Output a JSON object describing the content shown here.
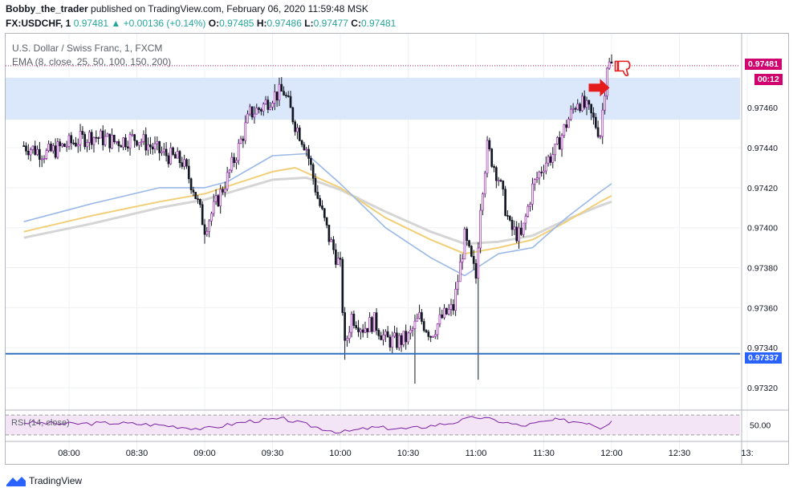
{
  "header": {
    "author": "Bobby_the_trader",
    "published": "published on TradingView.com, February 06, 2020 11:59:48 MSK",
    "symbol": "FX:USDCHF, 1",
    "price": "0.97481",
    "change_arrow": "▲",
    "change": "+0.00136 (+0.14%)",
    "o_label": "O:",
    "o": "0.97485",
    "h_label": "H:",
    "h": "0.97486",
    "l_label": "L:",
    "l": "0.97477",
    "c_label": "C:",
    "c": "0.97481"
  },
  "legend": {
    "title": "U.S. Dollar / Swiss Franc, 1, FXCM",
    "ema": "EMA (8, close, 25, 50, 100, 150, 200)",
    "rsi": "RSI (14, close)"
  },
  "tags": {
    "last_price": "0.97481",
    "timer": "00:12",
    "level": "0.97337"
  },
  "footer": {
    "brand": "TradingView"
  },
  "colors": {
    "up": "#ffffff",
    "down": "#131722",
    "wick": "#131722",
    "candle_accent": "#9c27b0",
    "zone": "#dbe7fb",
    "level_line": "#2f6fc4",
    "ema_fast": "#9ab8e8",
    "ema_mid": "#f0cf78",
    "ema_slow": "#d5d5d5",
    "rsi_line": "#7b1fa2",
    "rsi_band": "#f3e5f5",
    "price_line": "#c2185b",
    "signal": "#e51c1c"
  },
  "chart_data": {
    "type": "candlestick",
    "xlabel": "",
    "ylabel": "",
    "x_ticks": [
      "08:00",
      "08:30",
      "09:00",
      "09:30",
      "10:00",
      "10:30",
      "11:00",
      "11:30",
      "12:00",
      "12:30",
      "13:"
    ],
    "y_ticks": [
      "0.97460",
      "0.97440",
      "0.97420",
      "0.97400",
      "0.97380",
      "0.97360",
      "0.97340",
      "0.97320"
    ],
    "ylim": [
      0.9731,
      0.97497
    ],
    "supply_zone": [
      0.97454,
      0.97475
    ],
    "horizontal_level": 0.97337,
    "last_price": 0.97481,
    "close_path": [
      [
        "07:40",
        0.97441
      ],
      [
        "07:50",
        0.97437
      ],
      [
        "08:00",
        0.97442
      ],
      [
        "08:10",
        0.97446
      ],
      [
        "08:20",
        0.97443
      ],
      [
        "08:30",
        0.97445
      ],
      [
        "08:40",
        0.97438
      ],
      [
        "08:50",
        0.97433
      ],
      [
        "08:55",
        0.9742
      ],
      [
        "09:00",
        0.974
      ],
      [
        "09:05",
        0.97412
      ],
      [
        "09:10",
        0.97425
      ],
      [
        "09:15",
        0.9744
      ],
      [
        "09:20",
        0.97457
      ],
      [
        "09:25",
        0.9746
      ],
      [
        "09:30",
        0.97466
      ],
      [
        "09:35",
        0.97468
      ],
      [
        "09:40",
        0.97452
      ],
      [
        "09:45",
        0.9744
      ],
      [
        "09:50",
        0.97415
      ],
      [
        "09:55",
        0.97395
      ],
      [
        "10:00",
        0.9738
      ],
      [
        "10:02",
        0.9734
      ],
      [
        "10:05",
        0.97356
      ],
      [
        "10:10",
        0.9735
      ],
      [
        "10:15",
        0.97353
      ],
      [
        "10:20",
        0.97344
      ],
      [
        "10:25",
        0.97343
      ],
      [
        "10:30",
        0.97345
      ],
      [
        "10:35",
        0.97355
      ],
      [
        "10:40",
        0.97347
      ],
      [
        "10:45",
        0.97355
      ],
      [
        "10:50",
        0.9736
      ],
      [
        "10:55",
        0.97395
      ],
      [
        "11:00",
        0.97375
      ],
      [
        "11:02",
        0.97412
      ],
      [
        "11:05",
        0.9744
      ],
      [
        "11:10",
        0.97425
      ],
      [
        "11:15",
        0.974
      ],
      [
        "11:20",
        0.97395
      ],
      [
        "11:25",
        0.9742
      ],
      [
        "11:30",
        0.97432
      ],
      [
        "11:35",
        0.97438
      ],
      [
        "11:40",
        0.97452
      ],
      [
        "11:45",
        0.97464
      ],
      [
        "11:50",
        0.97458
      ],
      [
        "11:55",
        0.97447
      ],
      [
        "11:58",
        0.97482
      ],
      [
        "12:00",
        0.97481
      ]
    ],
    "notable_lows": [
      [
        "10:02",
        0.97334
      ],
      [
        "10:33",
        0.97322
      ],
      [
        "11:01",
        0.97324
      ],
      [
        "09:00",
        0.97392
      ]
    ],
    "ema_fast": [
      [
        "07:40",
        0.97403
      ],
      [
        "08:10",
        0.97412
      ],
      [
        "08:40",
        0.9742
      ],
      [
        "09:00",
        0.9742
      ],
      [
        "09:10",
        0.97423
      ],
      [
        "09:30",
        0.97436
      ],
      [
        "09:45",
        0.97437
      ],
      [
        "10:00",
        0.97422
      ],
      [
        "10:20",
        0.974
      ],
      [
        "10:40",
        0.97385
      ],
      [
        "10:55",
        0.97376
      ],
      [
        "11:10",
        0.97387
      ],
      [
        "11:25",
        0.9739
      ],
      [
        "11:40",
        0.97405
      ],
      [
        "11:55",
        0.97418
      ],
      [
        "12:00",
        0.97422
      ]
    ],
    "ema_mid": [
      [
        "07:40",
        0.97398
      ],
      [
        "08:10",
        0.97406
      ],
      [
        "08:40",
        0.97413
      ],
      [
        "09:00",
        0.97417
      ],
      [
        "09:30",
        0.97428
      ],
      [
        "09:40",
        0.9743
      ],
      [
        "10:00",
        0.9742
      ],
      [
        "10:20",
        0.97405
      ],
      [
        "10:40",
        0.97394
      ],
      [
        "10:55",
        0.97387
      ],
      [
        "11:10",
        0.9739
      ],
      [
        "11:25",
        0.97394
      ],
      [
        "11:40",
        0.97403
      ],
      [
        "11:55",
        0.97413
      ],
      [
        "12:00",
        0.97416
      ]
    ],
    "ema_slow": [
      [
        "07:40",
        0.97395
      ],
      [
        "08:10",
        0.97402
      ],
      [
        "08:40",
        0.9741
      ],
      [
        "09:00",
        0.97414
      ],
      [
        "09:30",
        0.97424
      ],
      [
        "09:45",
        0.97425
      ],
      [
        "10:00",
        0.97419
      ],
      [
        "10:20",
        0.97408
      ],
      [
        "10:40",
        0.97398
      ],
      [
        "10:55",
        0.97392
      ],
      [
        "11:10",
        0.97393
      ],
      [
        "11:25",
        0.97396
      ],
      [
        "11:40",
        0.97404
      ],
      [
        "11:55",
        0.97411
      ],
      [
        "12:00",
        0.97413
      ]
    ],
    "rsi": {
      "ylim": [
        25,
        75
      ],
      "band": [
        30,
        70
      ],
      "tick": "50.00",
      "series": [
        [
          "07:40",
          55
        ],
        [
          "08:00",
          52
        ],
        [
          "08:20",
          54
        ],
        [
          "08:40",
          50
        ],
        [
          "09:00",
          42
        ],
        [
          "09:20",
          58
        ],
        [
          "09:35",
          62
        ],
        [
          "09:50",
          45
        ],
        [
          "10:00",
          35
        ],
        [
          "10:15",
          45
        ],
        [
          "10:30",
          42
        ],
        [
          "10:50",
          55
        ],
        [
          "11:00",
          66
        ],
        [
          "11:10",
          58
        ],
        [
          "11:20",
          48
        ],
        [
          "11:35",
          60
        ],
        [
          "11:50",
          55
        ],
        [
          "11:55",
          45
        ],
        [
          "12:00",
          58
        ]
      ]
    },
    "grid": true
  }
}
